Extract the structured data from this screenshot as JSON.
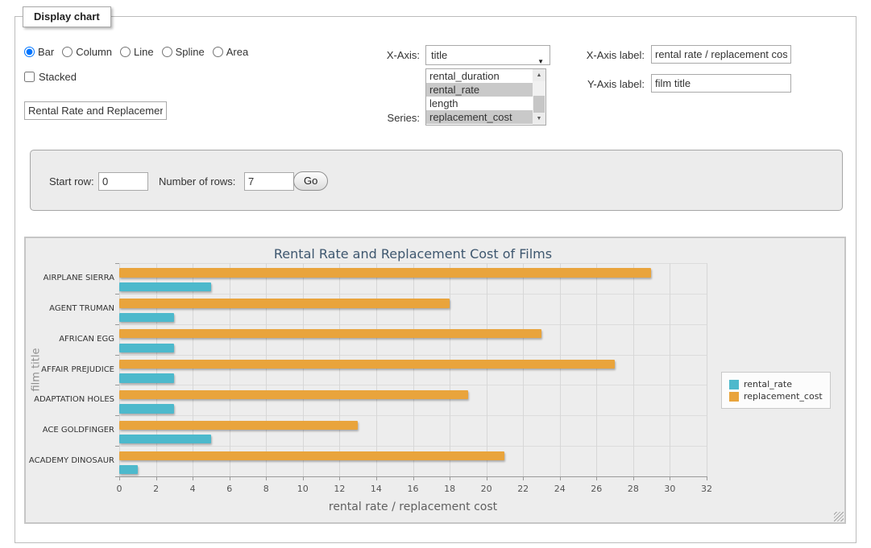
{
  "window": {
    "legend": "Display chart"
  },
  "controls": {
    "chart_types": [
      {
        "label": "Bar",
        "selected": true
      },
      {
        "label": "Column",
        "selected": false
      },
      {
        "label": "Line",
        "selected": false
      },
      {
        "label": "Spline",
        "selected": false
      },
      {
        "label": "Area",
        "selected": false
      }
    ],
    "stacked_label": "Stacked",
    "stacked_checked": false,
    "title_value": "Rental Rate and Replacement Cost of Films",
    "x_axis_caption": "X-Axis:",
    "x_axis_selected": "title",
    "series_caption": "Series:",
    "series_options": [
      {
        "label": "rental_duration",
        "selected": false
      },
      {
        "label": "rental_rate",
        "selected": true
      },
      {
        "label": "length",
        "selected": false
      },
      {
        "label": "replacement_cost",
        "selected": true
      }
    ],
    "x_label_caption": "X-Axis label:",
    "x_label_value": "rental rate / replacement cost",
    "y_label_caption": "Y-Axis label:",
    "y_label_value": "film title"
  },
  "row_controls": {
    "start_row_caption": "Start row:",
    "start_row_value": "0",
    "num_rows_caption": "Number of rows:",
    "num_rows_value": "7",
    "go_label": "Go"
  },
  "chart_data": {
    "type": "bar",
    "title": "Rental Rate and Replacement Cost of Films",
    "xlabel": "rental rate / replacement cost",
    "ylabel": "film title",
    "categories": [
      "AIRPLANE SIERRA",
      "AGENT TRUMAN",
      "AFRICAN EGG",
      "AFFAIR PREJUDICE",
      "ADAPTATION HOLES",
      "ACE GOLDFINGER",
      "ACADEMY DINOSAUR"
    ],
    "series": [
      {
        "name": "rental_rate",
        "color": "#4DB9CC",
        "values": [
          4.99,
          2.99,
          2.99,
          2.99,
          2.99,
          4.99,
          0.99
        ]
      },
      {
        "name": "replacement_cost",
        "color": "#E9A43C",
        "values": [
          28.99,
          17.99,
          22.99,
          26.99,
          18.99,
          12.99,
          20.99
        ]
      }
    ],
    "group_draw_order": [
      "replacement_cost",
      "rental_rate"
    ],
    "xlim": [
      0,
      32
    ],
    "xtick_step": 2,
    "grid": true,
    "legend_position": "right"
  }
}
